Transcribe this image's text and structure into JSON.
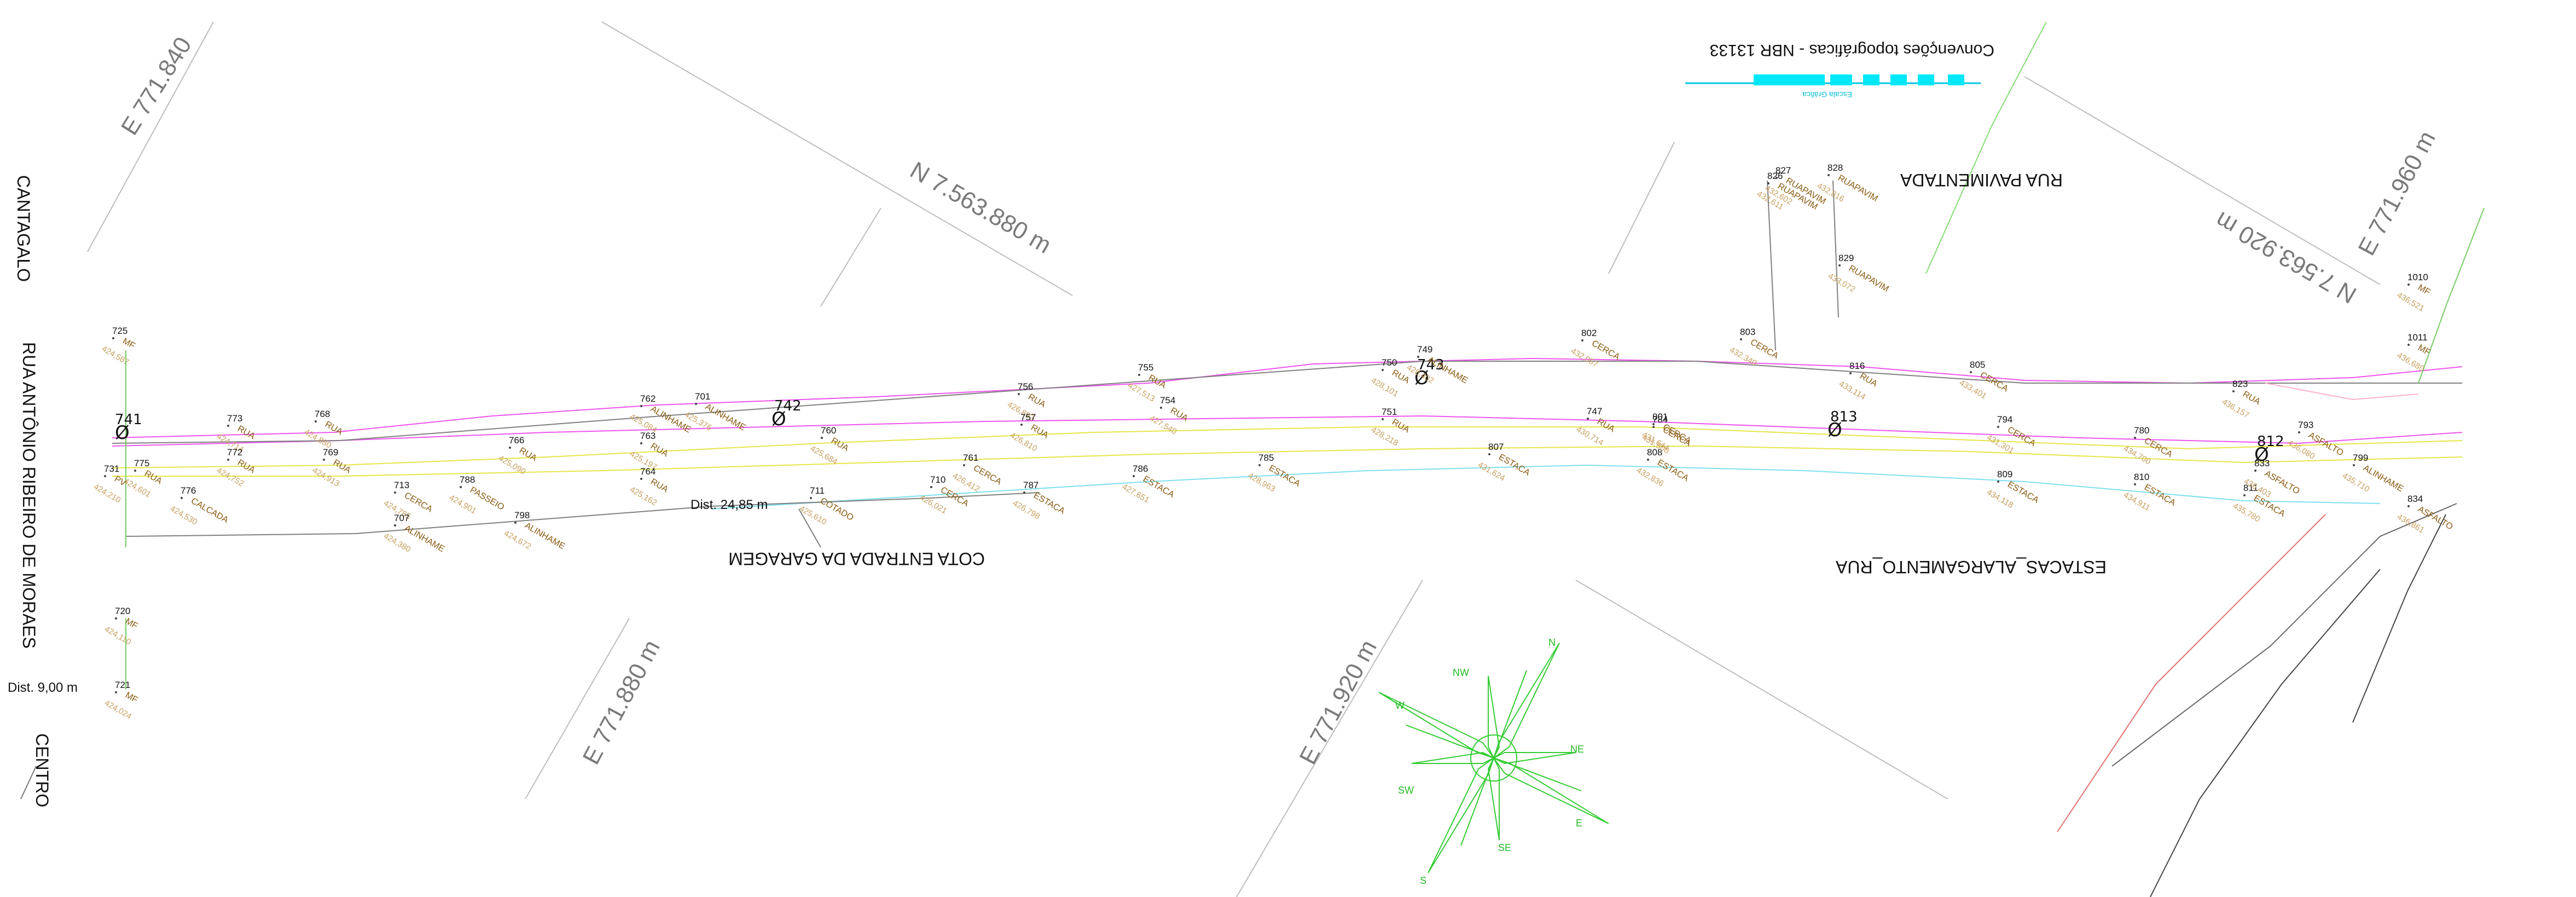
{
  "map": {
    "legend_title": "Convenções topográficas - NBR 13133",
    "legend_scale_text": "Escala Gráfica",
    "grid_labels": [
      {
        "id": "grid-e771840",
        "text": "E 771.840"
      },
      {
        "id": "grid-n7563880",
        "text": "N 7.563.880 m"
      },
      {
        "id": "grid-e771880",
        "text": "E 771.880 m"
      },
      {
        "id": "grid-e771920",
        "text": "E 771.920 m"
      },
      {
        "id": "grid-n7563920",
        "text": "N 7.563.920 m"
      },
      {
        "id": "grid-e771960",
        "text": "E 771.960 m"
      }
    ],
    "streets": [
      {
        "id": "street-cantagalo",
        "text": "CANTAGALO"
      },
      {
        "id": "street-antonio-ribeiro",
        "text": "RUA  ANTÔNIO RIBEIRO DE MORAES"
      },
      {
        "id": "street-centro",
        "text": "CENTRO"
      },
      {
        "id": "street-rua-pavimentada",
        "text": "RUA PAVIMENTADA"
      },
      {
        "id": "street-estacas",
        "text": "ESTACAS_ALARGAMENTO_RUA"
      },
      {
        "id": "street-cota-garagem",
        "text": "COTA ENTRADA DA GARAGEM"
      }
    ],
    "distances": [
      {
        "id": "dist-garagem",
        "text": "Dist. 24,85 m"
      },
      {
        "id": "dist-9",
        "text": "Dist. 9,00 m"
      }
    ],
    "compass": [
      "N",
      "NE",
      "E",
      "SE",
      "S",
      "SW",
      "W",
      "NW"
    ],
    "symbols": [
      {
        "id": "sym-741",
        "num": "741",
        "mark": "Ø"
      },
      {
        "id": "sym-742",
        "num": "742",
        "mark": "Ø"
      },
      {
        "id": "sym-743",
        "num": "743",
        "mark": "Ø"
      },
      {
        "id": "sym-813",
        "num": "813",
        "mark": "Ø"
      },
      {
        "id": "sym-812",
        "num": "812",
        "mark": "Ø"
      }
    ],
    "points": [
      {
        "num": "725",
        "code": "MF",
        "elev": "424,587"
      },
      {
        "num": "773",
        "code": "RUA",
        "elev": "424,714"
      },
      {
        "num": "768",
        "code": "RUA",
        "elev": "424,880"
      },
      {
        "num": "762",
        "code": "ALINHAME",
        "elev": "425,084"
      },
      {
        "num": "701",
        "code": "ALINHAME",
        "elev": "425,376"
      },
      {
        "num": "756",
        "code": "RUA",
        "elev": "426,893"
      },
      {
        "num": "755",
        "code": "RUA",
        "elev": "427,513"
      },
      {
        "num": "750",
        "code": "RUA",
        "elev": "428,101"
      },
      {
        "num": "749",
        "code": "ALINHAME",
        "elev": "428,402"
      },
      {
        "num": "802",
        "code": "CERCA",
        "elev": "432,057"
      },
      {
        "num": "803",
        "code": "CERCA",
        "elev": "432,340"
      },
      {
        "num": "826",
        "code": "RUAPAVIM",
        "elev": "432,611"
      },
      {
        "num": "827",
        "code": "RUAPAVIM",
        "elev": "432,602"
      },
      {
        "num": "828",
        "code": "RUAPAVIM",
        "elev": "432,816"
      },
      {
        "num": "829",
        "code": "RUAPAVIM",
        "elev": "433,072"
      },
      {
        "num": "816",
        "code": "RUA",
        "elev": "433,114"
      },
      {
        "num": "805",
        "code": "CERCA",
        "elev": "433,401"
      },
      {
        "num": "775",
        "code": "RUA",
        "elev": "424,601"
      },
      {
        "num": "772",
        "code": "RUA",
        "elev": "424,752"
      },
      {
        "num": "769",
        "code": "RUA",
        "elev": "424,913"
      },
      {
        "num": "766",
        "code": "RUA",
        "elev": "425,090"
      },
      {
        "num": "763",
        "code": "RUA",
        "elev": "425,197"
      },
      {
        "num": "760",
        "code": "RUA",
        "elev": "425,684"
      },
      {
        "num": "757",
        "code": "RUA",
        "elev": "426,810"
      },
      {
        "num": "754",
        "code": "RUA",
        "elev": "427,540"
      },
      {
        "num": "751",
        "code": "RUA",
        "elev": "428,218"
      },
      {
        "num": "747",
        "code": "RUA",
        "elev": "430,714"
      },
      {
        "num": "801",
        "code": "CERCA",
        "elev": "431,644"
      },
      {
        "num": "794",
        "code": "CERCA",
        "elev": "431,301"
      },
      {
        "num": "823",
        "code": "RUA",
        "elev": "436,157"
      },
      {
        "num": "1010",
        "code": "MF",
        "elev": "436,521"
      },
      {
        "num": "1011",
        "code": "MF",
        "elev": "436,680"
      },
      {
        "num": "731",
        "code": "PV",
        "elev": "424,210"
      },
      {
        "num": "776",
        "code": "CALCADA",
        "elev": "424,530"
      },
      {
        "num": "713",
        "code": "CERCA",
        "elev": "424,785"
      },
      {
        "num": "788",
        "code": "PASSEIO",
        "elev": "424,901"
      },
      {
        "num": "764",
        "code": "RUA",
        "elev": "425,162"
      },
      {
        "num": "711",
        "code": "COTADO",
        "elev": "425,610"
      },
      {
        "num": "710",
        "code": "CERCA",
        "elev": "426,021"
      },
      {
        "num": "761",
        "code": "CERCA",
        "elev": "426,412"
      },
      {
        "num": "787",
        "code": "ESTACA",
        "elev": "426,798"
      },
      {
        "num": "786",
        "code": "ESTACA",
        "elev": "427,651"
      },
      {
        "num": "785",
        "code": "ESTACA",
        "elev": "428,963"
      },
      {
        "num": "807",
        "code": "ESTACA",
        "elev": "431,624"
      },
      {
        "num": "808",
        "code": "ESTACA",
        "elev": "432,836"
      },
      {
        "num": "809",
        "code": "ESTACA",
        "elev": "434,118"
      },
      {
        "num": "810",
        "code": "ESTACA",
        "elev": "434,911"
      },
      {
        "num": "811",
        "code": "ESTACA",
        "elev": "435,780"
      },
      {
        "num": "833",
        "code": "ASFALTO",
        "elev": "436,403"
      },
      {
        "num": "834",
        "code": "ASFALTO",
        "elev": "436,861"
      },
      {
        "num": "720",
        "code": "MF",
        "elev": "424,110"
      },
      {
        "num": "721",
        "code": "MF",
        "elev": "424,024"
      },
      {
        "num": "707",
        "code": "ALINHAME",
        "elev": "424,380"
      },
      {
        "num": "798",
        "code": "ALINHAME",
        "elev": "424,672"
      },
      {
        "num": "780",
        "code": "CERCA",
        "elev": "434,700"
      },
      {
        "num": "784",
        "code": "CERCA",
        "elev": "431,500"
      },
      {
        "num": "793",
        "code": "ASFALTO",
        "elev": "436,080"
      },
      {
        "num": "799",
        "code": "ALINHAME",
        "elev": "435,710"
      }
    ]
  }
}
